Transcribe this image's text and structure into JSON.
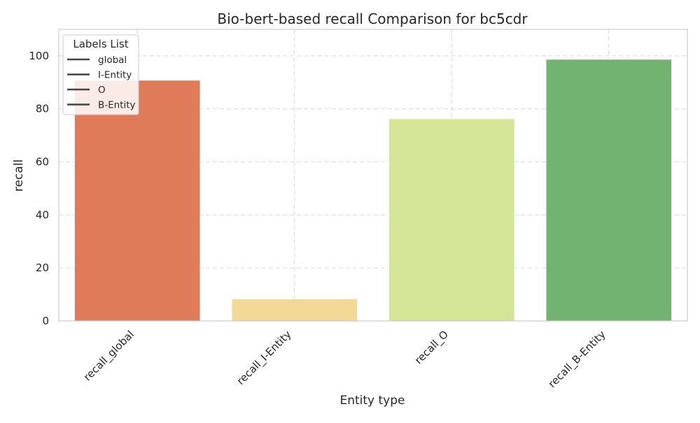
{
  "chart_data": {
    "type": "bar",
    "title": "Bio-bert-based recall Comparison for bc5cdr",
    "xlabel": "Entity type",
    "ylabel": "recall",
    "categories": [
      "recall_global",
      "recall_I-Entity",
      "recall_O",
      "recall_B-Entity"
    ],
    "values": [
      90.8,
      8.3,
      76.3,
      98.7
    ],
    "colors": [
      "#e07b5a",
      "#f3d996",
      "#d5e597",
      "#72b36f"
    ],
    "ylim": [
      0,
      110
    ],
    "yticks": [
      0,
      20,
      40,
      60,
      80,
      100
    ],
    "grid": true,
    "legend": {
      "title": "Labels List",
      "placement": "top-left",
      "entries": [
        "global",
        "I-Entity",
        "O",
        "B-Entity"
      ]
    }
  }
}
